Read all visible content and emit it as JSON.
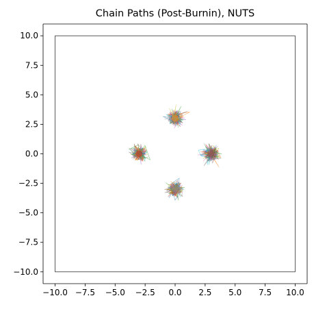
{
  "chart_data": {
    "type": "line",
    "title": "Chain Paths (Post-Burnin), NUTS",
    "xlabel": "",
    "ylabel": "",
    "xlim": [
      -11,
      11
    ],
    "ylim": [
      -11,
      11
    ],
    "xticks": [
      -10.0,
      -7.5,
      -5.0,
      -2.5,
      0.0,
      2.5,
      5.0,
      7.5,
      10.0
    ],
    "yticks": [
      -10.0,
      -7.5,
      -5.0,
      -2.5,
      0.0,
      2.5,
      5.0,
      7.5,
      10.0
    ],
    "xtick_labels": [
      "−10.0",
      "−7.5",
      "−5.0",
      "−2.5",
      "0.0",
      "2.5",
      "5.0",
      "7.5",
      "10.0"
    ],
    "ytick_labels": [
      "10.0",
      "7.5",
      "5.0",
      "2.5",
      "0.0",
      "−2.5",
      "−5.0",
      "−7.5",
      "−10.0"
    ],
    "grid": false,
    "legend": "none",
    "boundary_box": {
      "x": [
        -10,
        10
      ],
      "y": [
        -10,
        10
      ]
    },
    "modes": [
      {
        "center": [
          0,
          3
        ],
        "spread": 0.35
      },
      {
        "center": [
          -3,
          0
        ],
        "spread": 0.35
      },
      {
        "center": [
          3,
          0
        ],
        "spread": 0.35
      },
      {
        "center": [
          0,
          -3
        ],
        "spread": 0.35
      }
    ],
    "series_colors": [
      "#1f77b4",
      "#ff7f0e",
      "#2ca02c",
      "#d62728",
      "#9467bd",
      "#8c564b",
      "#e377c2",
      "#7f7f7f",
      "#bcbd22",
      "#17becf"
    ]
  }
}
